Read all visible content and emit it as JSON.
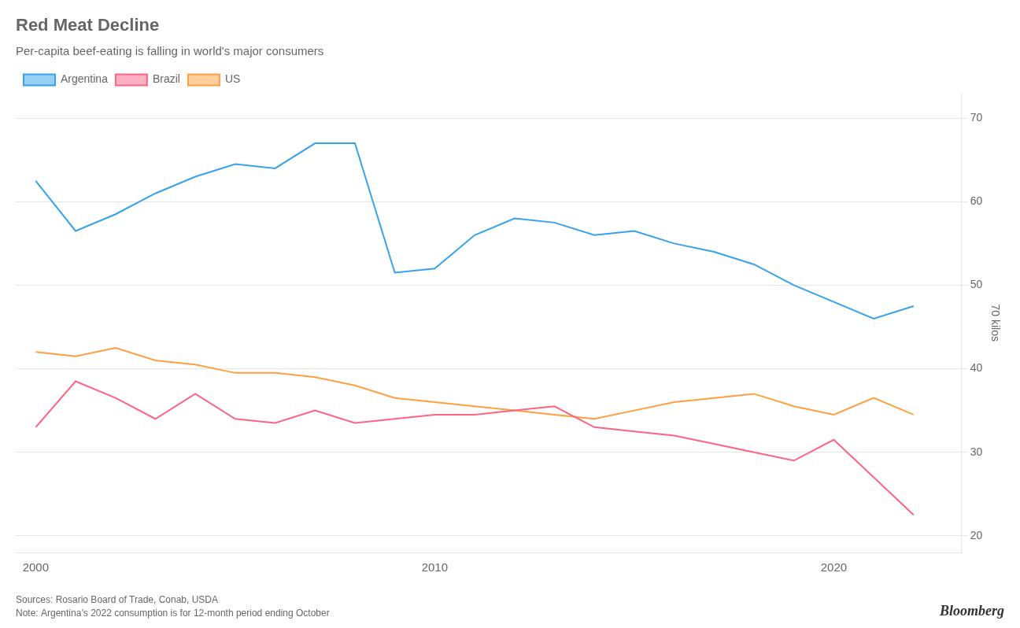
{
  "chart_data": {
    "type": "line",
    "title": "Red Meat Decline",
    "subtitle": "Per-capita beef-eating is falling in world's major consumers",
    "ylabel": "70 kilos",
    "source": "Sources: Rosario Board of Trade, Conab, USDA\nNote: Argentina’s 2022 consumption is for 12-month period ending October",
    "branding": "Bloomberg",
    "x": [
      2000,
      2001,
      2002,
      2003,
      2004,
      2005,
      2006,
      2007,
      2008,
      2009,
      2010,
      2011,
      2012,
      2013,
      2014,
      2015,
      2016,
      2017,
      2018,
      2019,
      2020,
      2021,
      2022
    ],
    "series": [
      {
        "name": "Argentina",
        "values": [
          62.5,
          56.5,
          58.5,
          61.0,
          63.0,
          64.5,
          64.0,
          67.0,
          67.0,
          51.5,
          52.0,
          56.0,
          58.0,
          57.5,
          56.0,
          56.5,
          55.0,
          54.0,
          52.5,
          50.0,
          48.0,
          46.0,
          47.5
        ]
      },
      {
        "name": "Brazil",
        "values": [
          33.0,
          38.5,
          36.5,
          34.0,
          37.0,
          34.0,
          33.5,
          35.0,
          33.5,
          34.0,
          34.5,
          34.5,
          35.0,
          35.5,
          33.0,
          32.5,
          32.0,
          31.0,
          30.0,
          29.0,
          31.5,
          27.0,
          22.5
        ]
      },
      {
        "name": "US",
        "values": [
          42.0,
          41.5,
          42.5,
          41.0,
          40.5,
          39.5,
          39.5,
          39.0,
          38.0,
          36.5,
          36.0,
          35.5,
          35.0,
          34.5,
          34.0,
          35.0,
          36.0,
          36.5,
          37.0,
          35.5,
          34.5,
          36.5,
          34.5
        ]
      }
    ],
    "xlim": [
      1999.5,
      2023.2
    ],
    "xticks": [
      2000,
      2010,
      2020
    ],
    "ylim": [
      18,
      73
    ],
    "yticks": [
      20,
      30,
      40,
      50,
      60,
      70
    ],
    "grid": "y",
    "legend": "top-left"
  }
}
